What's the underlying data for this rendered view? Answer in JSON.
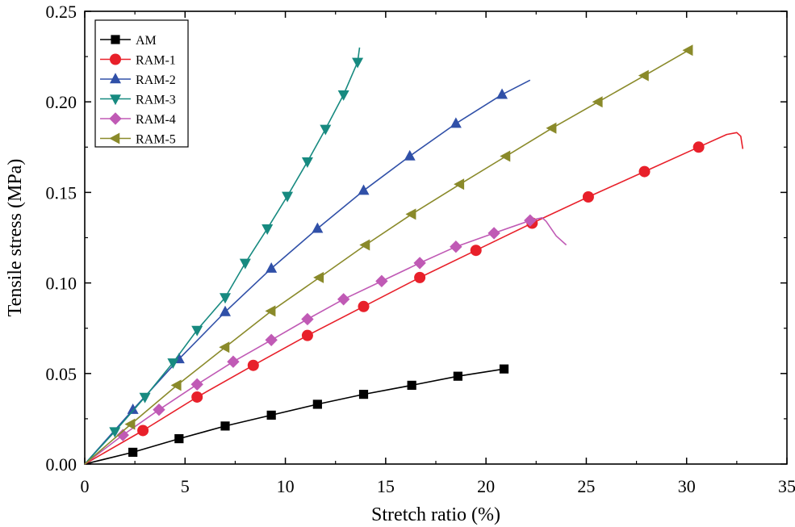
{
  "chart_data": {
    "type": "line",
    "xlabel": "Stretch ratio (%)",
    "ylabel": "Tensile stress (MPa)",
    "xlim": [
      0,
      35
    ],
    "ylim": [
      0,
      0.25
    ],
    "xticks": [
      "0",
      "5",
      "10",
      "15",
      "20",
      "25",
      "30",
      "35"
    ],
    "yticks": [
      "0.00",
      "0.05",
      "0.10",
      "0.15",
      "0.20",
      "0.25"
    ],
    "legend_position": "top-left",
    "series": [
      {
        "name": "AM",
        "color": "#000000",
        "marker": "square",
        "line": [
          [
            0,
            0
          ],
          [
            2.4,
            0.0065
          ],
          [
            4.7,
            0.014
          ],
          [
            7.0,
            0.021
          ],
          [
            9.3,
            0.027
          ],
          [
            11.6,
            0.033
          ],
          [
            13.9,
            0.0385
          ],
          [
            16.3,
            0.0435
          ],
          [
            18.6,
            0.0485
          ],
          [
            20.9,
            0.0525
          ]
        ],
        "markers": [
          [
            2.4,
            0.0065
          ],
          [
            4.7,
            0.014
          ],
          [
            7.0,
            0.021
          ],
          [
            9.3,
            0.027
          ],
          [
            11.6,
            0.033
          ],
          [
            13.9,
            0.0385
          ],
          [
            16.3,
            0.0435
          ],
          [
            18.6,
            0.0485
          ],
          [
            20.9,
            0.0525
          ]
        ]
      },
      {
        "name": "RAM-1",
        "color": "#e8202a",
        "marker": "circle",
        "line": [
          [
            0,
            0
          ],
          [
            2.9,
            0.0185
          ],
          [
            5.6,
            0.037
          ],
          [
            8.4,
            0.0545
          ],
          [
            11.1,
            0.071
          ],
          [
            13.9,
            0.087
          ],
          [
            16.7,
            0.103
          ],
          [
            19.5,
            0.118
          ],
          [
            22.3,
            0.133
          ],
          [
            25.1,
            0.1475
          ],
          [
            27.9,
            0.1615
          ],
          [
            30.6,
            0.175
          ],
          [
            32.0,
            0.182
          ],
          [
            32.5,
            0.183
          ],
          [
            32.7,
            0.181
          ],
          [
            32.8,
            0.174
          ]
        ],
        "markers": [
          [
            2.9,
            0.0185
          ],
          [
            5.6,
            0.037
          ],
          [
            8.4,
            0.0545
          ],
          [
            11.1,
            0.071
          ],
          [
            13.9,
            0.087
          ],
          [
            16.7,
            0.103
          ],
          [
            19.5,
            0.118
          ],
          [
            22.3,
            0.133
          ],
          [
            25.1,
            0.1475
          ],
          [
            27.9,
            0.1615
          ],
          [
            30.6,
            0.175
          ]
        ]
      },
      {
        "name": "RAM-2",
        "color": "#3050a8",
        "marker": "triangle-up",
        "line": [
          [
            0,
            0
          ],
          [
            2.4,
            0.03
          ],
          [
            4.7,
            0.058
          ],
          [
            7.0,
            0.084
          ],
          [
            9.3,
            0.108
          ],
          [
            11.6,
            0.13
          ],
          [
            13.9,
            0.151
          ],
          [
            16.2,
            0.17
          ],
          [
            18.5,
            0.188
          ],
          [
            20.8,
            0.204
          ],
          [
            22.2,
            0.212
          ]
        ],
        "markers": [
          [
            2.4,
            0.03
          ],
          [
            4.7,
            0.058
          ],
          [
            7.0,
            0.084
          ],
          [
            9.3,
            0.108
          ],
          [
            11.6,
            0.13
          ],
          [
            13.9,
            0.151
          ],
          [
            16.2,
            0.17
          ],
          [
            18.5,
            0.188
          ],
          [
            20.8,
            0.204
          ]
        ]
      },
      {
        "name": "RAM-3",
        "color": "#178a80",
        "marker": "triangle-down",
        "line": [
          [
            0,
            0
          ],
          [
            1.5,
            0.018
          ],
          [
            3.0,
            0.037
          ],
          [
            4.4,
            0.056
          ],
          [
            5.6,
            0.074
          ],
          [
            7.0,
            0.092
          ],
          [
            8.0,
            0.111
          ],
          [
            9.1,
            0.13
          ],
          [
            10.1,
            0.148
          ],
          [
            11.1,
            0.167
          ],
          [
            12.0,
            0.185
          ],
          [
            12.9,
            0.204
          ],
          [
            13.6,
            0.222
          ],
          [
            13.7,
            0.23
          ]
        ],
        "markers": [
          [
            1.5,
            0.018
          ],
          [
            3.0,
            0.037
          ],
          [
            4.4,
            0.056
          ],
          [
            5.6,
            0.074
          ],
          [
            7.0,
            0.092
          ],
          [
            8.0,
            0.111
          ],
          [
            9.1,
            0.13
          ],
          [
            10.1,
            0.148
          ],
          [
            11.1,
            0.167
          ],
          [
            12.0,
            0.185
          ],
          [
            12.9,
            0.204
          ],
          [
            13.6,
            0.222
          ]
        ]
      },
      {
        "name": "RAM-4",
        "color": "#c05ab5",
        "marker": "diamond",
        "line": [
          [
            0,
            0
          ],
          [
            1.9,
            0.016
          ],
          [
            3.7,
            0.03
          ],
          [
            5.6,
            0.044
          ],
          [
            7.4,
            0.0565
          ],
          [
            9.3,
            0.0685
          ],
          [
            11.1,
            0.08
          ],
          [
            12.9,
            0.091
          ],
          [
            14.8,
            0.101
          ],
          [
            16.7,
            0.111
          ],
          [
            18.5,
            0.12
          ],
          [
            20.4,
            0.1275
          ],
          [
            22.2,
            0.1345
          ],
          [
            22.8,
            0.136
          ],
          [
            23.0,
            0.134
          ],
          [
            23.5,
            0.126
          ],
          [
            24.0,
            0.121
          ]
        ],
        "markers": [
          [
            1.9,
            0.016
          ],
          [
            3.7,
            0.03
          ],
          [
            5.6,
            0.044
          ],
          [
            7.4,
            0.0565
          ],
          [
            9.3,
            0.0685
          ],
          [
            11.1,
            0.08
          ],
          [
            12.9,
            0.091
          ],
          [
            14.8,
            0.101
          ],
          [
            16.7,
            0.111
          ],
          [
            18.5,
            0.12
          ],
          [
            20.4,
            0.1275
          ],
          [
            22.2,
            0.1345
          ]
        ]
      },
      {
        "name": "RAM-5",
        "color": "#8a8a2a",
        "marker": "triangle-left",
        "line": [
          [
            0,
            0
          ],
          [
            2.3,
            0.022
          ],
          [
            4.6,
            0.0435
          ],
          [
            7.0,
            0.0645
          ],
          [
            9.3,
            0.0845
          ],
          [
            11.7,
            0.103
          ],
          [
            14.0,
            0.121
          ],
          [
            16.3,
            0.138
          ],
          [
            18.7,
            0.1545
          ],
          [
            21.0,
            0.17
          ],
          [
            23.3,
            0.1855
          ],
          [
            25.6,
            0.2
          ],
          [
            27.9,
            0.2145
          ],
          [
            30.1,
            0.2285
          ],
          [
            30.3,
            0.229
          ]
        ],
        "markers": [
          [
            2.3,
            0.022
          ],
          [
            4.6,
            0.0435
          ],
          [
            7.0,
            0.0645
          ],
          [
            9.3,
            0.0845
          ],
          [
            11.7,
            0.103
          ],
          [
            14.0,
            0.121
          ],
          [
            16.3,
            0.138
          ],
          [
            18.7,
            0.1545
          ],
          [
            21.0,
            0.17
          ],
          [
            23.3,
            0.1855
          ],
          [
            25.6,
            0.2
          ],
          [
            27.9,
            0.2145
          ],
          [
            30.1,
            0.2285
          ]
        ]
      }
    ]
  }
}
